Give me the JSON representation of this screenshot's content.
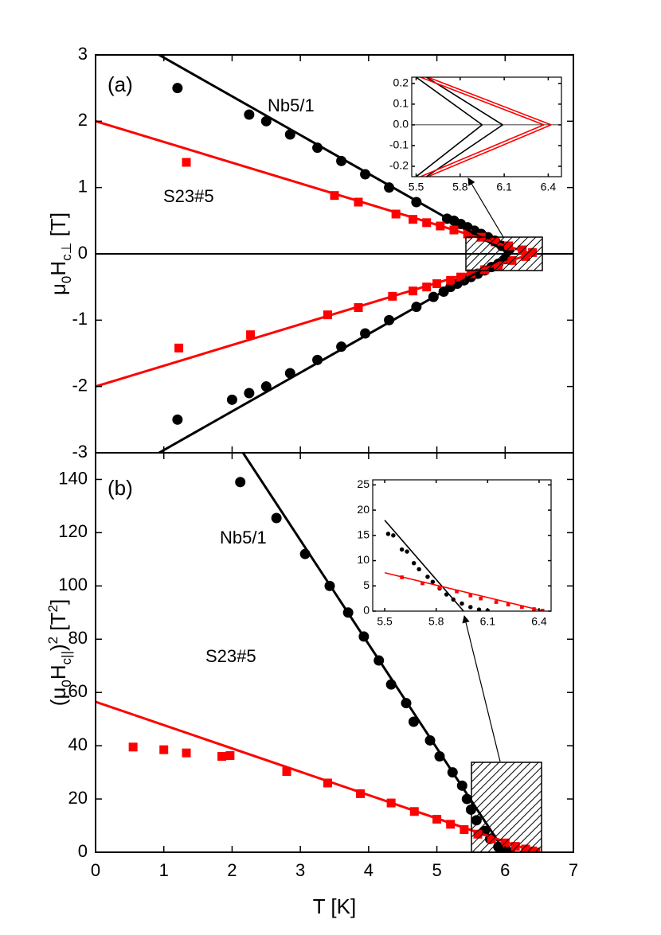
{
  "chart_data": [
    {
      "type": "scatter",
      "panel_label": "(a)",
      "annotations": [
        "Nb5/1",
        "S23#5"
      ],
      "ylabel": [
        "μ",
        {
          "sub": "0"
        },
        "H",
        {
          "sub": "c⊥"
        },
        " [T]"
      ],
      "ylim": [
        -3,
        3
      ],
      "yticks": [
        -3,
        -2,
        -1,
        0,
        1,
        2,
        3
      ],
      "zero_line": true,
      "series": [
        {
          "color": "#000000",
          "marker": "circle",
          "x": [
            1.2,
            2.25,
            2.5,
            2.85,
            3.25,
            3.6,
            3.95,
            4.3,
            4.7,
            5.15,
            5.25,
            5.35,
            5.45,
            5.55,
            5.65,
            5.75,
            5.85,
            5.95,
            6.05
          ],
          "values": [
            2.5,
            2.1,
            2.0,
            1.8,
            1.6,
            1.4,
            1.2,
            1.0,
            0.78,
            0.53,
            0.5,
            0.45,
            0.4,
            0.35,
            0.3,
            0.25,
            0.2,
            0.12,
            0.05
          ]
        },
        {
          "color": "#000000",
          "marker": "circle",
          "x": [
            1.2,
            2.0,
            2.25,
            2.5,
            2.85,
            3.25,
            3.6,
            3.95,
            4.3,
            4.7,
            4.95,
            5.1,
            5.2,
            5.3,
            5.4,
            5.5,
            5.6,
            5.7,
            5.8,
            5.9,
            6.0
          ],
          "values": [
            -2.5,
            -2.2,
            -2.1,
            -2.0,
            -1.8,
            -1.6,
            -1.4,
            -1.2,
            -1.0,
            -0.8,
            -0.65,
            -0.57,
            -0.5,
            -0.45,
            -0.4,
            -0.35,
            -0.3,
            -0.25,
            -0.2,
            -0.15,
            -0.08
          ]
        },
        {
          "color": "#ff0000",
          "marker": "square",
          "x": [
            1.33,
            3.5,
            3.85,
            4.4,
            4.65,
            4.85,
            5.05,
            5.25,
            5.45,
            5.65,
            5.85,
            6.05,
            6.25,
            6.4
          ],
          "values": [
            1.38,
            0.88,
            0.78,
            0.6,
            0.52,
            0.47,
            0.42,
            0.36,
            0.3,
            0.25,
            0.18,
            0.12,
            0.06,
            0.02
          ]
        },
        {
          "color": "#ff0000",
          "marker": "square",
          "x": [
            1.22,
            2.27,
            3.4,
            3.85,
            4.35,
            4.65,
            4.85,
            5.0,
            5.2,
            5.35,
            5.5,
            5.7,
            5.9,
            6.1,
            6.3
          ],
          "values": [
            -1.42,
            -1.22,
            -0.92,
            -0.81,
            -0.64,
            -0.56,
            -0.5,
            -0.45,
            -0.4,
            -0.35,
            -0.3,
            -0.24,
            -0.18,
            -0.1,
            -0.04
          ]
        },
        {
          "color": "#000000",
          "marker": "line",
          "x": [
            0.93,
            6.07
          ],
          "values": [
            3,
            0
          ]
        },
        {
          "color": "#000000",
          "marker": "line",
          "x": [
            0.93,
            6.07
          ],
          "values": [
            -3,
            0
          ]
        },
        {
          "color": "#ff0000",
          "marker": "line",
          "x": [
            0,
            6.4
          ],
          "values": [
            2,
            0
          ]
        },
        {
          "color": "#ff0000",
          "marker": "line",
          "x": [
            0,
            6.4
          ],
          "values": [
            -2,
            0
          ]
        }
      ]
    },
    {
      "type": "scatter",
      "xlim": [
        5.47,
        6.49
      ],
      "xticks": [
        5.5,
        5.8,
        6.1,
        6.4
      ],
      "ylim": [
        -0.25,
        0.23
      ],
      "yticks": [
        -0.2,
        -0.1,
        {
          "value": 0,
          "label": "0.0"
        },
        0.1,
        0.2
      ],
      "zero_line": true,
      "series": [
        {
          "color": "#000000",
          "marker": "line",
          "x": [
            5.5,
            5.95
          ],
          "values": [
            0.23,
            0
          ]
        },
        {
          "color": "#000000",
          "marker": "line",
          "x": [
            5.5,
            5.95
          ],
          "values": [
            -0.25,
            0
          ]
        },
        {
          "color": "#000000",
          "marker": "line",
          "x": [
            5.57,
            6.09
          ],
          "values": [
            0.23,
            0
          ]
        },
        {
          "color": "#000000",
          "marker": "line",
          "x": [
            5.57,
            6.09
          ],
          "values": [
            -0.25,
            0
          ]
        },
        {
          "color": "#ff0000",
          "marker": "line",
          "x": [
            5.53,
            6.37
          ],
          "values": [
            0.23,
            0
          ]
        },
        {
          "color": "#ff0000",
          "marker": "line",
          "x": [
            5.53,
            6.37
          ],
          "values": [
            -0.25,
            0
          ]
        },
        {
          "color": "#ff0000",
          "marker": "line",
          "x": [
            5.58,
            6.42
          ],
          "values": [
            0.23,
            0
          ]
        },
        {
          "color": "#ff0000",
          "marker": "line",
          "x": [
            5.58,
            6.42
          ],
          "values": [
            -0.25,
            0
          ]
        }
      ]
    },
    {
      "type": "scatter",
      "panel_label": "(b)",
      "annotations": [
        "Nb5/1",
        "S23#5"
      ],
      "xlabel": "T [K]",
      "xlim": [
        0,
        7
      ],
      "xticks": [
        0,
        1,
        2,
        3,
        4,
        5,
        6,
        7
      ],
      "ylabel": [
        "(μ",
        {
          "sub": "0"
        },
        "H",
        {
          "sub": "c||"
        },
        ")",
        {
          "sup": "2"
        },
        " [T",
        {
          "sup": "2"
        },
        "]"
      ],
      "ylim": [
        0,
        150
      ],
      "yticks": [
        0,
        20,
        40,
        60,
        80,
        100,
        120,
        140
      ],
      "series": [
        {
          "color": "#000000",
          "marker": "circle",
          "x": [
            2.12,
            2.65,
            3.07,
            3.43,
            3.7,
            3.93,
            4.15,
            4.33,
            4.55,
            4.66,
            4.9,
            5.04,
            5.23,
            5.37,
            5.44,
            5.5,
            5.58,
            5.7,
            5.78,
            5.9,
            6.0,
            6.07
          ],
          "values": [
            139,
            125.5,
            112,
            100,
            90,
            81,
            72,
            63,
            56,
            49,
            42,
            36,
            30,
            25,
            20,
            16,
            12,
            8,
            5,
            2,
            0.5,
            0
          ]
        },
        {
          "color": "#ff0000",
          "marker": "square",
          "x": [
            0.55,
            1.0,
            1.33,
            1.85,
            1.97,
            2.8,
            3.4,
            3.88,
            4.33,
            4.67,
            5.0,
            5.2,
            5.4,
            5.6,
            5.8,
            6.0,
            6.15,
            6.3,
            6.4,
            6.45
          ],
          "values": [
            39.5,
            38.5,
            37.3,
            36,
            36.3,
            30.3,
            26,
            22,
            18.5,
            15.3,
            12.4,
            10.5,
            8.5,
            6.8,
            5,
            3.5,
            2.2,
            1.2,
            0.5,
            0.1
          ]
        },
        {
          "color": "#000000",
          "marker": "line",
          "x": [
            2.16,
            6.0
          ],
          "values": [
            150,
            0
          ]
        },
        {
          "color": "#ff0000",
          "marker": "line",
          "x": [
            0,
            6.45
          ],
          "values": [
            56.5,
            0
          ]
        }
      ]
    },
    {
      "type": "scatter",
      "xlim": [
        5.43,
        6.47
      ],
      "xticks": [
        5.5,
        5.8,
        6.1,
        6.4
      ],
      "ylim": [
        0,
        26
      ],
      "yticks": [
        0,
        5,
        10,
        15,
        20,
        25
      ],
      "series": [
        {
          "color": "#000000",
          "marker": "circle",
          "x": [
            5.52,
            5.55,
            5.6,
            5.63,
            5.67,
            5.7,
            5.75,
            5.78,
            5.82,
            5.86,
            5.9,
            5.95,
            6.0,
            6.05,
            6.1
          ],
          "values": [
            15.3,
            15,
            12.2,
            11.8,
            9.5,
            8.3,
            6.8,
            5.8,
            4.5,
            3.3,
            2.3,
            1.5,
            0.8,
            0.3,
            0.1
          ]
        },
        {
          "color": "#ff0000",
          "marker": "square",
          "x": [
            5.6,
            5.72,
            5.82,
            5.92,
            6.0,
            6.06,
            6.15,
            6.22,
            6.3,
            6.37,
            6.42
          ],
          "values": [
            6.7,
            5.5,
            4.7,
            3.9,
            3.1,
            2.5,
            1.8,
            1.3,
            0.8,
            0.4,
            0.1
          ]
        },
        {
          "color": "#000000",
          "marker": "line",
          "x": [
            5.5,
            5.96
          ],
          "values": [
            18,
            0
          ]
        },
        {
          "color": "#ff0000",
          "marker": "line",
          "x": [
            5.5,
            6.43
          ],
          "values": [
            7.6,
            0
          ]
        }
      ]
    }
  ]
}
